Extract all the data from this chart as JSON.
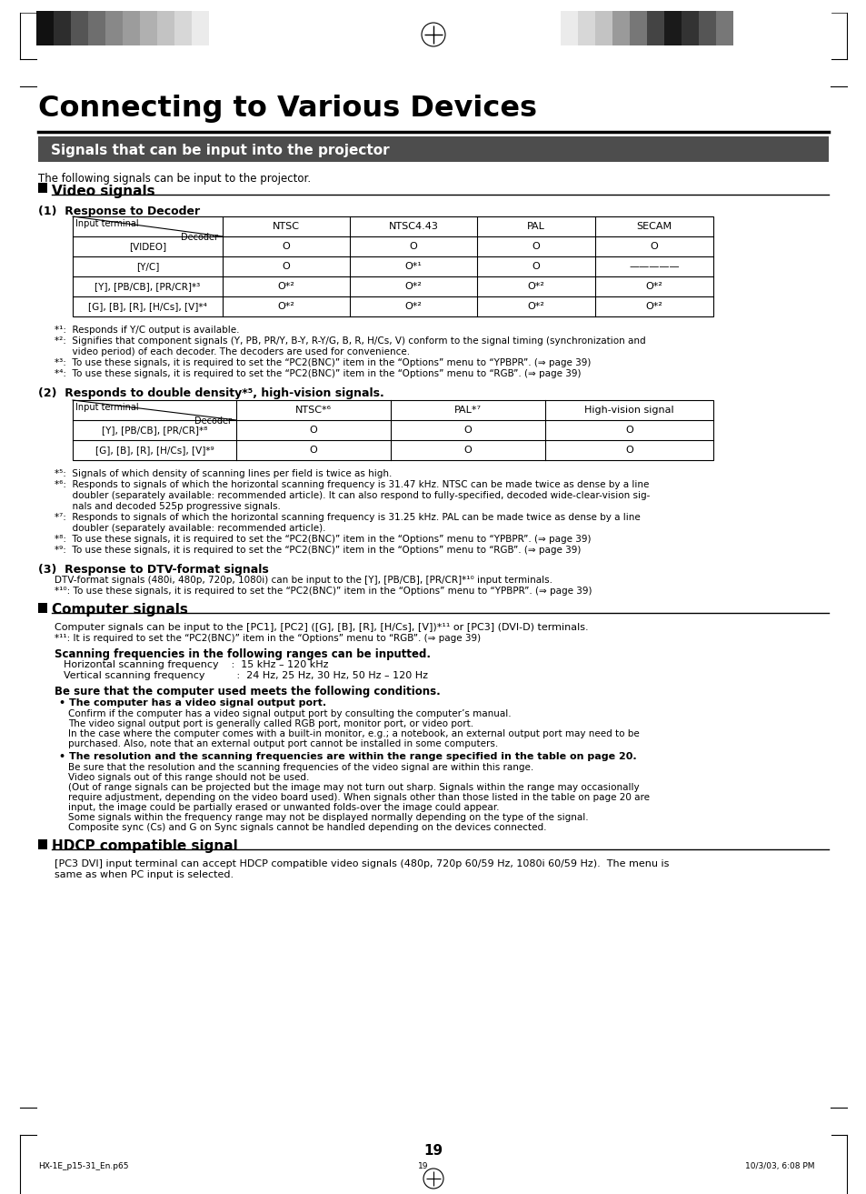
{
  "page_bg": "#ffffff",
  "title": "Connecting to Various Devices",
  "subtitle": "Signals that can be input into the projector",
  "section_header_bg": "#555555",
  "bar_colors_left": [
    "#111111",
    "#2a2a2a",
    "#444444",
    "#666666",
    "#888888",
    "#999999",
    "#bbbbbb",
    "#cccccc",
    "#dddddd",
    "#eeeeee"
  ],
  "bar_colors_right": [
    "#eeeeee",
    "#dddddd",
    "#cccccc",
    "#aaaaaa",
    "#888888",
    "#555555",
    "#333333",
    "#111111",
    "#333333",
    "#555555"
  ],
  "table1_col_headers": [
    "NTSC",
    "NTSC4.43",
    "PAL",
    "SECAM"
  ],
  "table1_rows": [
    [
      "[VIDEO]",
      "O",
      "O",
      "O",
      "O"
    ],
    [
      "[Y/C]",
      "O",
      "O*¹",
      "O",
      "—————"
    ],
    [
      "[Y], [PB/CB], [PR/CR]*³",
      "O*²",
      "O*²",
      "O*²",
      "O*²"
    ],
    [
      "[G], [B], [R], [H/Cs], [V]*⁴",
      "O*²",
      "O*²",
      "O*²",
      "O*²"
    ]
  ],
  "table2_col_headers": [
    "NTSC*⁶",
    "PAL*⁷",
    "High-vision signal"
  ],
  "table2_rows": [
    [
      "[Y], [PB/CB], [PR/CR]*⁸",
      "O",
      "O",
      "O"
    ],
    [
      "[G], [B], [R], [H/Cs], [V]*⁹",
      "O",
      "O",
      "O"
    ]
  ],
  "footnotes1": [
    "*¹:  Responds if Y/C output is available.",
    "*²:  Signifies that component signals (Y, PB, PR/Y, B-Y, R-Y/G, B, R, H/Cs, V) conform to the signal timing (synchronization and",
    "      video period) of each decoder. The decoders are used for convenience.",
    "*³:  To use these signals, it is required to set the “PC2(BNC)” item in the “Options” menu to “YPBPR”. (⇒ page 39)",
    "*⁴:  To use these signals, it is required to set the “PC2(BNC)” item in the “Options” menu to “RGB”. (⇒ page 39)"
  ],
  "footnotes2": [
    "*⁵:  Signals of which density of scanning lines per field is twice as high.",
    "*⁶:  Responds to signals of which the horizontal scanning frequency is 31.47 kHz. NTSC can be made twice as dense by a line",
    "      doubler (separately available: recommended article). It can also respond to fully-specified, decoded wide-clear-vision sig-",
    "      nals and decoded 525p progressive signals.",
    "*⁷:  Responds to signals of which the horizontal scanning frequency is 31.25 kHz. PAL can be made twice as dense by a line",
    "      doubler (separately available: recommended article).",
    "*⁸:  To use these signals, it is required to set the “PC2(BNC)” item in the “Options” menu to “YPBPR”. (⇒ page 39)",
    "*⁹:  To use these signals, it is required to set the “PC2(BNC)” item in the “Options” menu to “RGB”. (⇒ page 39)"
  ]
}
